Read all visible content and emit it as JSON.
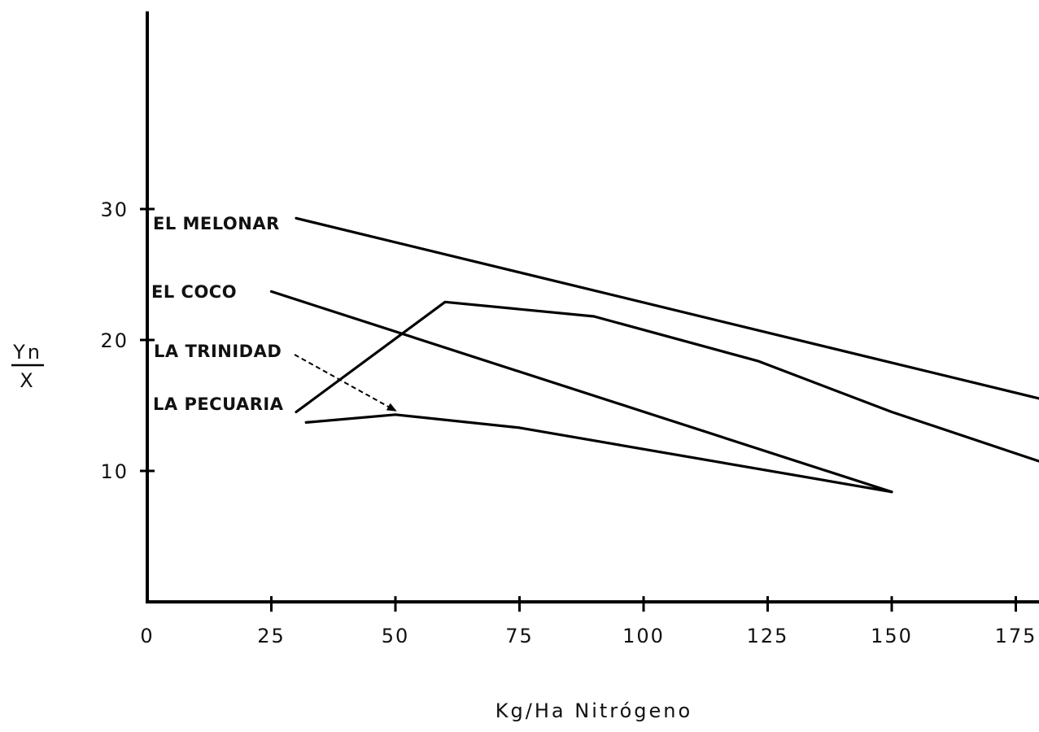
{
  "chart_data": {
    "type": "line",
    "title": "",
    "xlabel": "Kg/Ha Nitrógeno",
    "ylabel_numerator": "Yn",
    "ylabel_denominator": "X",
    "xlim": [
      0,
      180
    ],
    "ylim": [
      0,
      46
    ],
    "x_ticks": [
      0,
      25,
      50,
      75,
      100,
      125,
      150,
      175
    ],
    "x_tick_labels": [
      "0",
      "25",
      "50",
      "75",
      "100",
      "125",
      "150",
      "175"
    ],
    "y_ticks": [
      10,
      20,
      30
    ],
    "y_tick_labels": [
      "10",
      "20",
      "30"
    ],
    "grid": false,
    "legend": "labels placed beside each line",
    "series": [
      {
        "name": "EL MELONAR",
        "x": [
          30,
          180
        ],
        "y": [
          29.3,
          15.5
        ]
      },
      {
        "name": "EL COCO",
        "x": [
          25,
          150
        ],
        "y": [
          23.7,
          8.4
        ]
      },
      {
        "name": "LA TRINIDAD",
        "x": [
          32,
          50,
          75,
          150
        ],
        "y": [
          13.7,
          14.3,
          13.3,
          8.4
        ]
      },
      {
        "name": "LA PECUARIA",
        "x": [
          30,
          60,
          90,
          123,
          150,
          180
        ],
        "y": [
          14.5,
          22.9,
          21.8,
          18.4,
          14.5,
          10.7
        ]
      }
    ],
    "annotations": [
      {
        "text": "LA TRINIDAD",
        "arrow_to_x": 50,
        "arrow_to_y": 14.3,
        "style": "dashed arrow"
      }
    ]
  }
}
